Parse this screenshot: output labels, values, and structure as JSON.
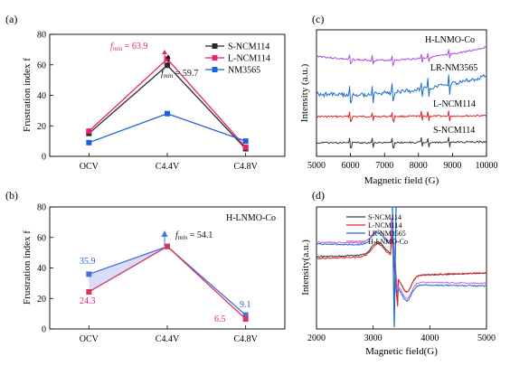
{
  "figure": {
    "panel_a_label": "(a)",
    "panel_b_label": "(b)",
    "panel_c_label": "(c)",
    "panel_d_label": "(d)"
  },
  "chart_data": [
    {
      "panel": "a",
      "type": "line",
      "categories": [
        "OCV",
        "C4.4V",
        "C4.8V"
      ],
      "ylabel": "Frustration index f",
      "ylim": [
        0,
        80
      ],
      "yticks": [
        0,
        20,
        40,
        60,
        80
      ],
      "legend": "top-right",
      "series": [
        {
          "name": "S-NCM114",
          "values": [
            15,
            59.7,
            5
          ],
          "color": "#2b2b2b",
          "marker": "square"
        },
        {
          "name": "L-NCM114",
          "values": [
            16.5,
            63.9,
            6
          ],
          "color": "#e8206e",
          "marker": "square"
        },
        {
          "name": "NM3565",
          "values": [
            9,
            28,
            10
          ],
          "color": "#1f5fe0",
          "marker": "square"
        }
      ],
      "annotations": [
        {
          "text_prefix": "f",
          "text_sub": "min",
          "text_value": " = 63.9",
          "color": "#e8206e"
        },
        {
          "text_prefix": "f",
          "text_sub": "min",
          "text_value": " = 59.7",
          "color": "#111111"
        }
      ]
    },
    {
      "panel": "b",
      "type": "line",
      "categories": [
        "OCV",
        "C4.4V",
        "C4.8V"
      ],
      "ylabel": "Frustration index f",
      "ylim": [
        0,
        80
      ],
      "yticks": [
        0,
        20,
        40,
        60,
        80
      ],
      "legend_text": "H-LNMO-Co",
      "series": [
        {
          "values": [
            35.9,
            54.1,
            9.1
          ],
          "color": "#4a6fe0",
          "marker": "square"
        },
        {
          "values": [
            24.3,
            54.1,
            6.5
          ],
          "color": "#d9345c",
          "marker": "square"
        }
      ],
      "value_labels": [
        {
          "text": "35.9",
          "color": "#1f5fe0"
        },
        {
          "text": "24.3",
          "color": "#e8206e"
        },
        {
          "text": "9.1",
          "color": "#1f5fe0"
        },
        {
          "text": "6.5",
          "color": "#e8206e"
        }
      ],
      "annotations": [
        {
          "text_prefix": "f",
          "text_sub": "min",
          "text_value": " = 54.1",
          "color": "#111111"
        }
      ]
    },
    {
      "panel": "c",
      "type": "line",
      "xlabel": "Magnetic field (G)",
      "ylabel": "Intensity (a.u.)",
      "xlim": [
        5000,
        10000
      ],
      "xticks": [
        5000,
        6000,
        7000,
        8000,
        9000,
        10000
      ],
      "series": [
        {
          "name": "H-LNMO-Co",
          "color": "#b44fe0"
        },
        {
          "name": "LR-NM3565",
          "color": "#1f6fd0"
        },
        {
          "name": "L-NCM114",
          "color": "#e02525"
        },
        {
          "name": "S-NCM114",
          "color": "#3a3a3a"
        }
      ]
    },
    {
      "panel": "d",
      "type": "line",
      "xlabel": "Magnetic field(G)",
      "ylabel": "Intensity(a.u.)",
      "xlim": [
        2000,
        5000
      ],
      "xticks": [
        2000,
        3000,
        4000,
        5000
      ],
      "legend": "top-left",
      "series": [
        {
          "name": "S-NCM114",
          "color": "#3a3a3a"
        },
        {
          "name": "L-NCM114",
          "color": "#e02525"
        },
        {
          "name": "LR-NM3565",
          "color": "#1f6fd0"
        },
        {
          "name": "H-LNMO-Co",
          "color": "#cc66dd"
        }
      ]
    }
  ]
}
